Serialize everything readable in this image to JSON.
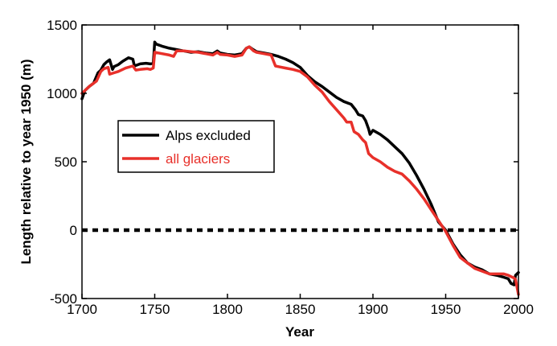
{
  "chart_data": {
    "type": "line",
    "title": "",
    "xlabel": "Year",
    "ylabel": "Length relative to year 1950 (m)",
    "xlim": [
      1700,
      2000
    ],
    "ylim": [
      -500,
      1500
    ],
    "xticks": [
      1700,
      1750,
      1800,
      1850,
      1900,
      1950,
      2000
    ],
    "yticks": [
      -500,
      0,
      500,
      1000,
      1500
    ],
    "grid": false,
    "legend_position": "middle-left",
    "reference_line": {
      "y": 0,
      "style": "dotted",
      "color": "#000000"
    },
    "series": [
      {
        "name": "Alps excluded",
        "color": "#000000",
        "x": [
          1700,
          1702,
          1705,
          1708,
          1711,
          1713,
          1715,
          1717,
          1719,
          1721,
          1722,
          1725,
          1728,
          1732,
          1735,
          1736,
          1740,
          1744,
          1747,
          1749,
          1750,
          1751,
          1755,
          1760,
          1765,
          1770,
          1775,
          1780,
          1785,
          1790,
          1793,
          1795,
          1800,
          1805,
          1810,
          1813,
          1815,
          1817,
          1820,
          1825,
          1830,
          1835,
          1840,
          1845,
          1850,
          1855,
          1860,
          1865,
          1870,
          1875,
          1880,
          1885,
          1888,
          1890,
          1893,
          1895,
          1897,
          1898,
          1900,
          1905,
          1910,
          1915,
          1920,
          1925,
          1930,
          1935,
          1940,
          1945,
          1950,
          1955,
          1960,
          1965,
          1970,
          1975,
          1980,
          1985,
          1990,
          1993,
          1995,
          1997,
          1998,
          2000
        ],
        "y": [
          960,
          1020,
          1050,
          1075,
          1150,
          1170,
          1210,
          1230,
          1245,
          1175,
          1195,
          1210,
          1235,
          1260,
          1250,
          1200,
          1215,
          1220,
          1215,
          1220,
          1375,
          1360,
          1345,
          1330,
          1320,
          1310,
          1300,
          1305,
          1295,
          1290,
          1310,
          1295,
          1285,
          1280,
          1290,
          1330,
          1340,
          1325,
          1305,
          1295,
          1285,
          1270,
          1250,
          1225,
          1190,
          1130,
          1085,
          1050,
          1010,
          970,
          940,
          920,
          880,
          845,
          835,
          800,
          740,
          700,
          730,
          700,
          660,
          610,
          560,
          490,
          400,
          300,
          190,
          60,
          0,
          -100,
          -180,
          -240,
          -270,
          -290,
          -320,
          -330,
          -345,
          -355,
          -390,
          -400,
          -330,
          -310
        ]
      },
      {
        "name": "all glaciers",
        "color": "#e8302a",
        "x": [
          1700,
          1705,
          1710,
          1713,
          1715,
          1718,
          1719,
          1722,
          1725,
          1730,
          1735,
          1737,
          1740,
          1745,
          1747,
          1749,
          1750,
          1755,
          1760,
          1763,
          1765,
          1770,
          1775,
          1780,
          1785,
          1790,
          1793,
          1795,
          1800,
          1805,
          1810,
          1813,
          1815,
          1818,
          1820,
          1825,
          1830,
          1833,
          1835,
          1840,
          1845,
          1850,
          1855,
          1860,
          1865,
          1870,
          1875,
          1880,
          1882,
          1885,
          1887,
          1890,
          1893,
          1895,
          1897,
          1900,
          1905,
          1910,
          1915,
          1920,
          1925,
          1930,
          1935,
          1940,
          1945,
          1950,
          1955,
          1960,
          1965,
          1970,
          1975,
          1980,
          1985,
          1990,
          1993,
          1995,
          1997,
          1998,
          2000
        ],
        "y": [
          1000,
          1050,
          1090,
          1160,
          1180,
          1190,
          1140,
          1150,
          1160,
          1185,
          1200,
          1170,
          1175,
          1180,
          1175,
          1185,
          1300,
          1290,
          1280,
          1270,
          1310,
          1310,
          1305,
          1300,
          1290,
          1280,
          1300,
          1285,
          1280,
          1270,
          1280,
          1330,
          1340,
          1310,
          1300,
          1290,
          1280,
          1200,
          1195,
          1185,
          1175,
          1160,
          1120,
          1060,
          1010,
          940,
          880,
          820,
          790,
          790,
          720,
          700,
          660,
          640,
          560,
          530,
          500,
          460,
          430,
          410,
          360,
          300,
          230,
          150,
          70,
          -10,
          -110,
          -200,
          -240,
          -280,
          -300,
          -320,
          -320,
          -320,
          -330,
          -340,
          -350,
          -360,
          -470
        ]
      }
    ]
  }
}
